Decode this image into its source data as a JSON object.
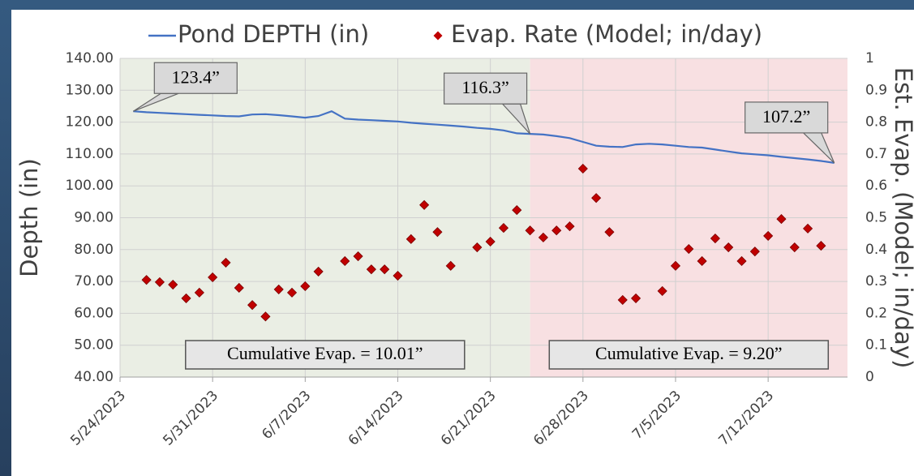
{
  "chart_data": {
    "type": "line",
    "xlim": [
      "5/24/2023",
      "7/18/2023"
    ],
    "xticks": [
      "5/24/2023",
      "5/31/2023",
      "6/7/2023",
      "6/14/2023",
      "6/21/2023",
      "6/28/2023",
      "7/5/2023",
      "7/12/2023"
    ],
    "ylabel": "Depth (in)",
    "y2label": "Est. Evap. (Model; in/day)",
    "ylim": [
      40,
      140
    ],
    "yticks": [
      {
        "value": 40,
        "label": "40.00"
      },
      {
        "value": 50,
        "label": "50.00"
      },
      {
        "value": 60,
        "label": "60.00"
      },
      {
        "value": 70,
        "label": "70.00"
      },
      {
        "value": 80,
        "label": "80.00"
      },
      {
        "value": 90,
        "label": "90.00"
      },
      {
        "value": 100,
        "label": "100.00"
      },
      {
        "value": 110,
        "label": "110.00"
      },
      {
        "value": 120,
        "label": "120.00"
      },
      {
        "value": 130,
        "label": "130.00"
      },
      {
        "value": 140,
        "label": "140.00"
      }
    ],
    "y2lim": [
      0,
      1
    ],
    "y2ticks": [
      0,
      0.1,
      0.2,
      0.3,
      0.4,
      0.5,
      0.6,
      0.7,
      0.8,
      0.9,
      1
    ],
    "grid": true,
    "legend": "top",
    "regions": [
      {
        "from": "5/24/2023",
        "to": "6/24/2023",
        "color": "#eaeee4",
        "label": "Cumulative Evap. = 10.01”"
      },
      {
        "from": "6/24/2023",
        "to": "7/18/2023",
        "color": "#f8e0e2",
        "label": "Cumulative Evap. = 9.20”"
      }
    ],
    "annotations": [
      {
        "text": "123.4”",
        "x": "5/25/2023",
        "y": 123.4
      },
      {
        "text": "116.3”",
        "x": "6/24/2023",
        "y": 116.3
      },
      {
        "text": "107.2”",
        "x": "7/17/2023",
        "y": 107.2
      }
    ],
    "series": [
      {
        "name": "Pond DEPTH (in)",
        "color": "#4472c4",
        "kind": "line",
        "x": [
          "5/25/2023",
          "5/26/2023",
          "5/27/2023",
          "5/28/2023",
          "5/29/2023",
          "5/30/2023",
          "5/31/2023",
          "6/1/2023",
          "6/2/2023",
          "6/3/2023",
          "6/4/2023",
          "6/5/2023",
          "6/6/2023",
          "6/7/2023",
          "6/8/2023",
          "6/9/2023",
          "6/10/2023",
          "6/11/2023",
          "6/12/2023",
          "6/13/2023",
          "6/14/2023",
          "6/15/2023",
          "6/16/2023",
          "6/17/2023",
          "6/18/2023",
          "6/19/2023",
          "6/20/2023",
          "6/21/2023",
          "6/22/2023",
          "6/23/2023",
          "6/24/2023",
          "6/25/2023",
          "6/26/2023",
          "6/27/2023",
          "6/28/2023",
          "6/29/2023",
          "6/30/2023",
          "7/1/2023",
          "7/2/2023",
          "7/3/2023",
          "7/4/2023",
          "7/5/2023",
          "7/6/2023",
          "7/7/2023",
          "7/8/2023",
          "7/9/2023",
          "7/10/2023",
          "7/11/2023",
          "7/12/2023",
          "7/13/2023",
          "7/14/2023",
          "7/15/2023",
          "7/16/2023",
          "7/17/2023"
        ],
        "values": [
          123.4,
          123.1,
          122.9,
          122.7,
          122.5,
          122.3,
          122.1,
          121.9,
          121.8,
          122.4,
          122.5,
          122.2,
          121.8,
          121.4,
          121.9,
          123.4,
          121.1,
          120.8,
          120.6,
          120.4,
          120.2,
          119.8,
          119.5,
          119.2,
          118.9,
          118.6,
          118.2,
          117.9,
          117.4,
          116.5,
          116.3,
          116.1,
          115.6,
          115.0,
          113.8,
          112.6,
          112.3,
          112.2,
          113.0,
          113.2,
          113.0,
          112.6,
          112.2,
          112.0,
          111.4,
          110.8,
          110.2,
          109.9,
          109.6,
          109.1,
          108.7,
          108.3,
          107.8,
          107.2
        ]
      },
      {
        "name": "Evap. Rate (Model; in/day)",
        "color": "#c00000",
        "kind": "scatter",
        "axis": "y2",
        "x": [
          "5/26/2023",
          "5/27/2023",
          "5/28/2023",
          "5/29/2023",
          "5/30/2023",
          "5/31/2023",
          "6/1/2023",
          "6/2/2023",
          "6/3/2023",
          "6/4/2023",
          "6/5/2023",
          "6/6/2023",
          "6/7/2023",
          "6/8/2023",
          "6/10/2023",
          "6/11/2023",
          "6/12/2023",
          "6/13/2023",
          "6/14/2023",
          "6/15/2023",
          "6/16/2023",
          "6/17/2023",
          "6/18/2023",
          "6/20/2023",
          "6/21/2023",
          "6/22/2023",
          "6/23/2023",
          "6/24/2023",
          "6/25/2023",
          "6/26/2023",
          "6/27/2023",
          "6/28/2023",
          "6/29/2023",
          "6/30/2023",
          "7/1/2023",
          "7/2/2023",
          "7/4/2023",
          "7/5/2023",
          "7/6/2023",
          "7/7/2023",
          "7/8/2023",
          "7/9/2023",
          "7/10/2023",
          "7/11/2023",
          "7/12/2023",
          "7/13/2023",
          "7/14/2023",
          "7/15/2023",
          "7/16/2023"
        ],
        "values": [
          0.305,
          0.298,
          0.29,
          0.247,
          0.265,
          0.313,
          0.359,
          0.28,
          0.226,
          0.19,
          0.275,
          0.265,
          0.285,
          0.331,
          0.364,
          0.379,
          0.338,
          0.338,
          0.318,
          0.433,
          0.54,
          0.455,
          0.349,
          0.407,
          0.425,
          0.468,
          0.524,
          0.46,
          0.438,
          0.46,
          0.473,
          0.654,
          0.562,
          0.455,
          0.242,
          0.247,
          0.27,
          0.349,
          0.402,
          0.364,
          0.435,
          0.407,
          0.364,
          0.394,
          0.443,
          0.496,
          0.407,
          0.466,
          0.412
        ]
      }
    ]
  }
}
